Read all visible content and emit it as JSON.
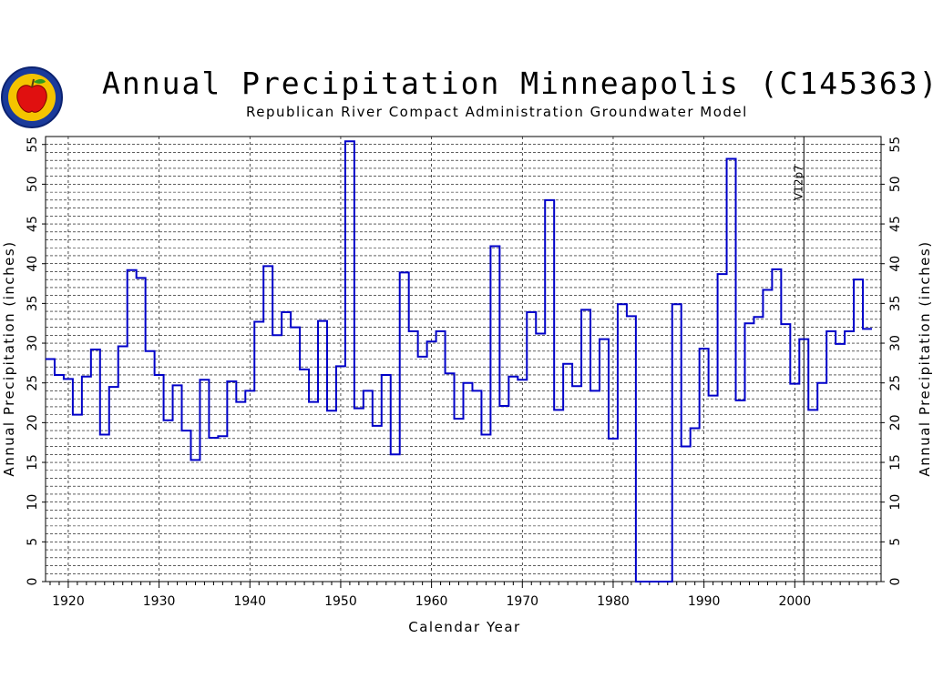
{
  "chart_data": {
    "type": "line",
    "style": "step",
    "title": "Annual Precipitation Minneapolis (C145363)",
    "subtitle": "Republican River Compact Administration Groundwater Model",
    "xlabel": "Calendar Year",
    "ylabel_left": "Annual Precipitation (inches)",
    "ylabel_right": "Annual Precipitation (inches)",
    "xlim": [
      1917.5,
      2009.5
    ],
    "ylim": [
      0,
      56
    ],
    "xticks": [
      "1920",
      "1930",
      "1940",
      "1950",
      "1960",
      "1970",
      "1980",
      "1990",
      "2000"
    ],
    "yticks": [
      "0",
      "5",
      "10",
      "15",
      "20",
      "25",
      "30",
      "35",
      "40",
      "45",
      "50",
      "55"
    ],
    "grid": true,
    "annotation": {
      "text": "V12p7",
      "x": 2001
    },
    "series": [
      {
        "color": "#0000c8",
        "x": [
          1918,
          1919,
          1920,
          1921,
          1922,
          1923,
          1924,
          1925,
          1926,
          1927,
          1928,
          1929,
          1930,
          1931,
          1932,
          1933,
          1934,
          1935,
          1936,
          1937,
          1938,
          1939,
          1940,
          1941,
          1942,
          1943,
          1944,
          1945,
          1946,
          1947,
          1948,
          1949,
          1950,
          1951,
          1952,
          1953,
          1954,
          1955,
          1956,
          1957,
          1958,
          1959,
          1960,
          1961,
          1962,
          1963,
          1964,
          1965,
          1966,
          1967,
          1968,
          1969,
          1970,
          1971,
          1972,
          1973,
          1974,
          1975,
          1976,
          1977,
          1978,
          1979,
          1980,
          1981,
          1982,
          1983,
          1984,
          1985,
          1986,
          1987,
          1988,
          1989,
          1990,
          1991,
          1992,
          1993,
          1994,
          1995,
          1996,
          1997,
          1998,
          1999,
          2000,
          2001,
          2002,
          2003,
          2004,
          2005,
          2006,
          2007,
          2008
        ],
        "values": [
          28.0,
          26.0,
          25.5,
          21.0,
          25.8,
          29.2,
          18.5,
          24.5,
          29.6,
          39.2,
          38.2,
          29.0,
          26.0,
          20.3,
          24.7,
          19.0,
          15.3,
          25.4,
          18.1,
          18.3,
          25.2,
          22.6,
          24.0,
          32.7,
          39.7,
          31.0,
          33.9,
          32.0,
          26.7,
          22.6,
          32.8,
          21.5,
          27.1,
          55.4,
          21.8,
          24.0,
          19.6,
          26.0,
          16.0,
          38.9,
          31.5,
          28.3,
          30.2,
          31.5,
          26.2,
          20.5,
          25.0,
          24.0,
          18.5,
          42.2,
          22.1,
          25.8,
          25.4,
          33.9,
          31.2,
          48.0,
          21.6,
          27.4,
          24.6,
          34.2,
          24.0,
          30.5,
          18.0,
          34.9,
          33.4,
          0,
          0,
          0,
          0,
          34.9,
          17.0,
          19.3,
          29.3,
          23.4,
          38.7,
          53.2,
          22.8,
          32.5,
          33.3,
          36.7,
          39.3,
          32.4,
          24.9,
          30.5,
          21.6,
          25.0,
          31.5,
          29.9,
          31.5,
          38.0,
          31.8
        ]
      }
    ]
  }
}
